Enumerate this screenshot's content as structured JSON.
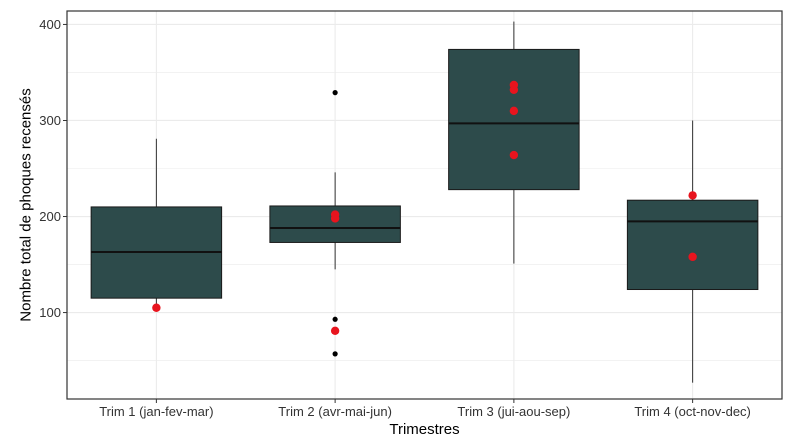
{
  "chart_data": {
    "type": "boxplot",
    "title": "",
    "xlabel": "Trimestres",
    "ylabel": "Nombre total de phoques recensés",
    "ylim": [
      10,
      414
    ],
    "yticks": [
      100,
      200,
      300,
      400
    ],
    "grid": true,
    "legend": "none",
    "categories": [
      "Trim 1 (jan-fev-mar)",
      "Trim 2 (avr-mai-jun)",
      "Trim 3 (jui-aou-sep)",
      "Trim 4 (oct-nov-dec)"
    ],
    "boxes": [
      {
        "category": "Trim 1 (jan-fev-mar)",
        "whisker_low": 105,
        "q1": 115,
        "median": 163,
        "q3": 210,
        "whisker_high": 281,
        "outliers": []
      },
      {
        "category": "Trim 2 (avr-mai-jun)",
        "whisker_low": 145,
        "q1": 173,
        "median": 188,
        "q3": 211,
        "whisker_high": 246,
        "outliers": [
          329,
          93,
          57
        ]
      },
      {
        "category": "Trim 3 (jui-aou-sep)",
        "whisker_low": 151,
        "q1": 228,
        "median": 297,
        "q3": 374,
        "whisker_high": 403,
        "outliers": []
      },
      {
        "category": "Trim 4 (oct-nov-dec)",
        "whisker_low": 27,
        "q1": 124,
        "median": 195,
        "q3": 217,
        "whisker_high": 300,
        "outliers": []
      }
    ],
    "observations": [
      {
        "category": "Trim 1 (jan-fev-mar)",
        "values": [
          105
        ]
      },
      {
        "category": "Trim 2 (avr-mai-jun)",
        "values": [
          202,
          198,
          81
        ]
      },
      {
        "category": "Trim 3 (jui-aou-sep)",
        "values": [
          337,
          332,
          310,
          264
        ]
      },
      {
        "category": "Trim 4 (oct-nov-dec)",
        "values": [
          222,
          158
        ]
      }
    ],
    "colors": {
      "box_fill": "#2d4b4b",
      "box_line": "#1a1a1a",
      "median": "#111111",
      "whisker": "#333333",
      "outlier": "#000000",
      "observation": "#e8141e",
      "grid": "#ebebeb",
      "panel_border": "#333333",
      "background": "#ffffff"
    }
  }
}
